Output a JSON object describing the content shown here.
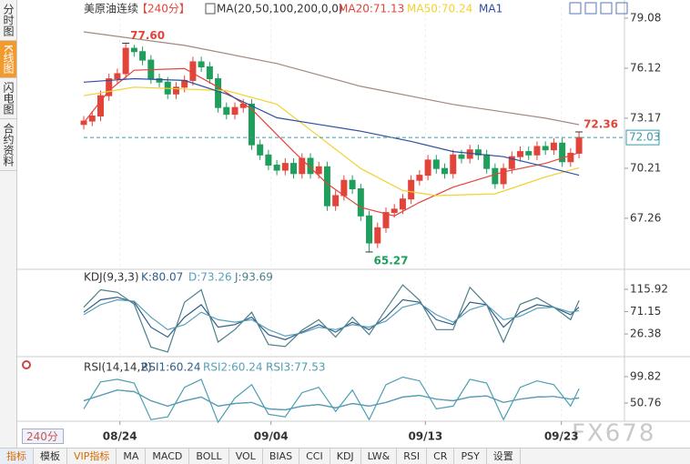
{
  "sidebar": {
    "tabs": [
      "分时图",
      "K线图",
      "闪电图",
      "合约资料"
    ]
  },
  "interval": "240分",
  "watermark": "FX678",
  "toolbar": {
    "items": [
      "指标",
      "模板",
      "VIP指标",
      "MA",
      "MACD",
      "BOLL",
      "VOL",
      "BIAS",
      "CCI",
      "KDJ",
      "LW&",
      "RSI",
      "CR",
      "PSY",
      "设置"
    ]
  },
  "chart_data": [
    {
      "type": "candlestick",
      "title": "美原油连续",
      "subtitle": "【240分】",
      "indicator": "MA(20,50,100,200,0,0)",
      "up_color": "#e2443a",
      "down_color": "#1f9e5c",
      "open": [
        72.8,
        73.0,
        73.3,
        74.5,
        75.5,
        75.8,
        77.3,
        77.1,
        76.6,
        75.5,
        75.3,
        74.6,
        75.0,
        75.4,
        76.5,
        76.2,
        75.5,
        73.8,
        73.4,
        73.8,
        74.0,
        71.6,
        71.0,
        70.4,
        70.1,
        70.5,
        69.9,
        70.8,
        69.9,
        70.3,
        68.0,
        68.6,
        69.5,
        69.0,
        67.4,
        65.8,
        66.7,
        67.6,
        67.8,
        68.4,
        69.5,
        69.8,
        70.7,
        70.2,
        69.9,
        71.0,
        70.8,
        71.3,
        71.0,
        70.2,
        69.3,
        70.2,
        70.9,
        71.2,
        71.0,
        71.5,
        71.3,
        71.7,
        70.6,
        71.1
      ],
      "high": [
        73.3,
        73.6,
        74.8,
        75.8,
        76.1,
        77.6,
        77.5,
        77.4,
        76.9,
        75.8,
        75.6,
        75.3,
        75.7,
        76.8,
        76.8,
        76.5,
        75.8,
        74.1,
        74.1,
        74.3,
        74.3,
        71.9,
        71.3,
        70.7,
        70.8,
        70.8,
        71.1,
        71.1,
        70.6,
        70.6,
        68.9,
        69.8,
        69.8,
        69.3,
        67.7,
        67.0,
        67.9,
        68.1,
        68.7,
        69.8,
        70.1,
        71.0,
        71.0,
        70.5,
        71.3,
        71.3,
        71.6,
        71.6,
        71.3,
        70.5,
        70.5,
        71.2,
        71.5,
        71.5,
        71.8,
        71.8,
        72.0,
        72.0,
        71.4,
        72.36
      ],
      "low": [
        72.5,
        72.7,
        73.0,
        74.2,
        75.2,
        75.5,
        76.8,
        76.3,
        75.2,
        75.0,
        74.3,
        74.3,
        74.7,
        75.1,
        75.9,
        75.2,
        73.5,
        73.1,
        73.1,
        73.5,
        71.3,
        70.7,
        70.1,
        69.8,
        69.8,
        69.6,
        69.6,
        69.6,
        69.6,
        67.7,
        67.7,
        68.3,
        68.7,
        67.1,
        65.27,
        65.5,
        66.4,
        67.3,
        67.5,
        68.1,
        69.2,
        69.5,
        69.9,
        69.6,
        69.6,
        70.5,
        70.5,
        70.7,
        69.9,
        69.0,
        69.0,
        69.9,
        70.6,
        70.7,
        70.7,
        71.0,
        71.0,
        70.3,
        70.3,
        70.8
      ],
      "close": [
        73.0,
        73.3,
        74.5,
        75.5,
        75.8,
        77.3,
        77.1,
        76.6,
        75.5,
        75.3,
        74.6,
        75.0,
        75.4,
        76.5,
        76.2,
        75.5,
        73.8,
        73.4,
        73.8,
        74.0,
        71.6,
        71.0,
        70.4,
        70.1,
        70.5,
        69.9,
        70.8,
        69.9,
        70.3,
        68.0,
        68.6,
        69.5,
        69.0,
        67.4,
        65.8,
        66.7,
        67.6,
        67.8,
        68.4,
        69.5,
        69.8,
        70.7,
        70.2,
        69.9,
        71.0,
        70.8,
        71.3,
        71.0,
        70.2,
        69.3,
        70.2,
        70.9,
        71.2,
        71.0,
        71.5,
        71.3,
        71.7,
        70.6,
        71.1,
        72.03
      ],
      "series": [
        {
          "name": "MA20:71.13",
          "color": "#e2443a",
          "x": [
            0,
            3,
            6,
            12,
            16,
            20,
            25,
            29,
            33,
            37,
            40,
            44,
            50,
            55,
            59
          ],
          "values": [
            72.9,
            74.8,
            76.0,
            76.1,
            75.0,
            73.7,
            71.2,
            69.3,
            67.9,
            67.4,
            68.2,
            69.1,
            70.0,
            70.5,
            71.13
          ]
        },
        {
          "name": "MA50:70.24",
          "color": "#f2d22e",
          "x": [
            0,
            6,
            17,
            23,
            28,
            33,
            38,
            42,
            49,
            55,
            59
          ],
          "values": [
            74.5,
            75.0,
            74.8,
            74.0,
            72.1,
            70.2,
            68.9,
            68.6,
            68.7,
            69.7,
            70.24
          ]
        },
        {
          "name": "MA1",
          "color": "#2d4f9e",
          "x": [
            0,
            6,
            12,
            17,
            23,
            28,
            33,
            39,
            44,
            50,
            55,
            59
          ],
          "values": [
            75.3,
            75.5,
            75.4,
            74.6,
            73.2,
            72.8,
            72.4,
            71.8,
            71.2,
            70.9,
            70.3,
            69.8
          ]
        },
        {
          "color": "#a08a80",
          "x": [
            0,
            12,
            23,
            33,
            44,
            55,
            59
          ],
          "values": [
            78.27,
            77.47,
            76.4,
            75.05,
            73.98,
            73.17,
            72.79
          ]
        }
      ],
      "annotations": [
        {
          "value": 77.6,
          "label": "77.60"
        },
        {
          "value": 65.27,
          "label": "65.27"
        },
        {
          "value": 72.36,
          "label": "72.36"
        }
      ],
      "last": {
        "value": 72.03,
        "label": "72.03"
      },
      "xlim": [
        -2,
        60.5
      ],
      "xticks": [
        {
          "value": 4.3,
          "label": "08/24"
        },
        {
          "value": 22.3,
          "label": "09/04"
        },
        {
          "value": 40.7,
          "label": "09/13"
        },
        {
          "value": 56.9,
          "label": "09/23"
        }
      ],
      "ylim": [
        64.3,
        79.72
      ],
      "yticks": [
        79.08,
        76.12,
        73.17,
        70.21,
        67.26
      ]
    },
    {
      "type": "line",
      "title": "KDJ(9,3,3)",
      "xlim": [
        -2,
        60.5
      ],
      "ylim": [
        -15.6,
        152.5
      ],
      "yticks": [
        115.92,
        71.15,
        26.38
      ],
      "series": [
        {
          "name": "K:80.07",
          "color": "#2f5f8a",
          "x": [
            0,
            2,
            4,
            6,
            8,
            10,
            12,
            14,
            16,
            18,
            20,
            22,
            24,
            26,
            28,
            30,
            32,
            34,
            36,
            38,
            40,
            42,
            44,
            46,
            48,
            50,
            52,
            54,
            56,
            58,
            59
          ],
          "values": [
            70,
            95,
            100,
            90,
            40,
            20,
            60,
            85,
            40,
            45,
            60,
            25,
            15,
            30,
            45,
            30,
            50,
            35,
            60,
            95,
            90,
            55,
            45,
            90,
            85,
            40,
            70,
            85,
            80,
            65,
            80.07
          ]
        },
        {
          "name": "D:73.26",
          "color": "#58a0b8",
          "x": [
            0,
            2,
            4,
            6,
            8,
            10,
            12,
            14,
            16,
            18,
            20,
            22,
            24,
            26,
            28,
            30,
            32,
            34,
            36,
            38,
            40,
            42,
            44,
            46,
            48,
            50,
            52,
            54,
            56,
            58,
            59
          ],
          "values": [
            65,
            85,
            95,
            92,
            60,
            35,
            45,
            70,
            55,
            50,
            55,
            35,
            22,
            28,
            40,
            35,
            45,
            40,
            52,
            80,
            88,
            65,
            50,
            75,
            85,
            55,
            62,
            78,
            80,
            70,
            73.26
          ]
        },
        {
          "name": "J:93.69",
          "color": "#4c7f8a",
          "x": [
            0,
            2,
            4,
            6,
            8,
            10,
            12,
            14,
            16,
            18,
            20,
            22,
            24,
            26,
            28,
            30,
            32,
            34,
            36,
            38,
            40,
            42,
            44,
            46,
            48,
            50,
            52,
            54,
            56,
            58,
            59
          ],
          "values": [
            80,
            115,
            110,
            86,
            0,
            -10,
            90,
            115,
            10,
            35,
            70,
            5,
            1,
            34,
            55,
            20,
            60,
            25,
            76,
            125,
            94,
            35,
            35,
            120,
            85,
            10,
            86,
            99,
            80,
            55,
            93.69
          ]
        }
      ]
    },
    {
      "type": "line",
      "title": "RSI(14,14,2)",
      "xlim": [
        -2,
        60.5
      ],
      "ylim": [
        22,
        132
      ],
      "yticks": [
        99.82,
        50.76
      ],
      "series": [
        {
          "name": "RSI1:60.24",
          "color": "#2f5f8a",
          "x": [
            0,
            2,
            4,
            6,
            8,
            10,
            12,
            14,
            16,
            18,
            20,
            22,
            24,
            26,
            28,
            30,
            32,
            34,
            36,
            38,
            40,
            42,
            44,
            46,
            48,
            50,
            52,
            54,
            56,
            58,
            59
          ],
          "values": [
            55,
            65,
            75,
            72,
            55,
            45,
            55,
            62,
            45,
            50,
            52,
            40,
            38,
            45,
            48,
            42,
            50,
            45,
            52,
            62,
            65,
            58,
            55,
            62,
            64,
            52,
            58,
            62,
            63,
            58,
            60.24
          ]
        },
        {
          "name": "RSI2:60.24",
          "color": "#58a0b8",
          "x": [
            0,
            2,
            4,
            6,
            8,
            10,
            12,
            14,
            16,
            18,
            20,
            22,
            24,
            26,
            28,
            30,
            32,
            34,
            36,
            38,
            40,
            42,
            44,
            46,
            48,
            50,
            52,
            54,
            56,
            58,
            59
          ],
          "values": [
            55,
            65,
            75,
            72,
            55,
            45,
            55,
            62,
            45,
            50,
            52,
            40,
            38,
            45,
            48,
            42,
            50,
            45,
            52,
            62,
            65,
            58,
            55,
            62,
            64,
            52,
            58,
            62,
            63,
            58,
            60.24
          ]
        },
        {
          "name": "RSI3:77.53",
          "color": "#4c9fb0",
          "x": [
            0,
            2,
            4,
            6,
            8,
            10,
            12,
            14,
            16,
            18,
            20,
            22,
            24,
            26,
            28,
            30,
            32,
            34,
            36,
            38,
            40,
            42,
            44,
            46,
            48,
            50,
            52,
            54,
            56,
            58,
            59
          ],
          "values": [
            40,
            90,
            95,
            88,
            20,
            25,
            80,
            95,
            15,
            60,
            85,
            30,
            25,
            70,
            80,
            35,
            75,
            20,
            85,
            99,
            92,
            40,
            45,
            95,
            88,
            20,
            80,
            92,
            85,
            45,
            77.53
          ]
        }
      ]
    }
  ]
}
